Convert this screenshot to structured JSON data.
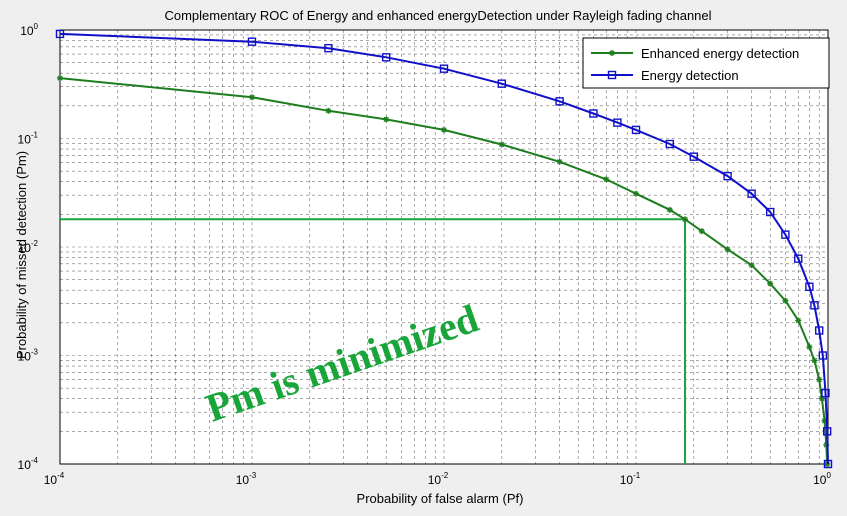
{
  "chart_data": {
    "type": "line",
    "title": "Complementary ROC of Energy  and enhanced energyDetection under Rayleigh fading channel",
    "xlabel": "Probability of false alarm (Pf)",
    "ylabel": "Probability of missed detection (Pm)",
    "xscale": "log",
    "yscale": "log",
    "xlim": [
      0.0001,
      1
    ],
    "ylim": [
      0.0001,
      1
    ],
    "grid": true,
    "legend_position": "top-right",
    "x_ticks": [
      {
        "base": "10",
        "exp": "-4",
        "value": 0.0001
      },
      {
        "base": "10",
        "exp": "-3",
        "value": 0.001
      },
      {
        "base": "10",
        "exp": "-2",
        "value": 0.01
      },
      {
        "base": "10",
        "exp": "-1",
        "value": 0.1
      },
      {
        "base": "10",
        "exp": "0",
        "value": 1
      }
    ],
    "y_ticks": [
      {
        "base": "10",
        "exp": "-4",
        "value": 0.0001
      },
      {
        "base": "10",
        "exp": "-3",
        "value": 0.001
      },
      {
        "base": "10",
        "exp": "-2",
        "value": 0.01
      },
      {
        "base": "10",
        "exp": "-1",
        "value": 0.1
      },
      {
        "base": "10",
        "exp": "0",
        "value": 1
      }
    ],
    "series": [
      {
        "name": "Enhanced energy detection",
        "color": "#1e7d1e",
        "marker": "star",
        "x": [
          0.0001,
          0.001,
          0.0025,
          0.005,
          0.01,
          0.02,
          0.04,
          0.07,
          0.1,
          0.15,
          0.18,
          0.22,
          0.3,
          0.4,
          0.5,
          0.6,
          0.7,
          0.8,
          0.85,
          0.9,
          0.93,
          0.96,
          0.98,
          0.99
        ],
        "y": [
          0.36,
          0.24,
          0.18,
          0.15,
          0.12,
          0.088,
          0.061,
          0.042,
          0.031,
          0.022,
          0.018,
          0.014,
          0.0095,
          0.0068,
          0.0046,
          0.0032,
          0.0021,
          0.0012,
          0.0009,
          0.0006,
          0.0004,
          0.00025,
          0.00015,
          0.0001
        ]
      },
      {
        "name": "Energy detection",
        "color": "#1010c8",
        "marker": "square",
        "x": [
          0.0001,
          0.001,
          0.0025,
          0.005,
          0.01,
          0.02,
          0.04,
          0.06,
          0.08,
          0.1,
          0.15,
          0.2,
          0.3,
          0.4,
          0.5,
          0.6,
          0.7,
          0.8,
          0.85,
          0.9,
          0.94,
          0.97,
          0.99,
          1.0
        ],
        "y": [
          0.92,
          0.78,
          0.68,
          0.56,
          0.44,
          0.32,
          0.22,
          0.17,
          0.14,
          0.12,
          0.089,
          0.068,
          0.045,
          0.031,
          0.021,
          0.013,
          0.0078,
          0.0043,
          0.0029,
          0.0017,
          0.001,
          0.00045,
          0.0002,
          0.0001
        ]
      }
    ],
    "annotations": [
      {
        "text": "Pm is minimized",
        "color": "#1aa53a"
      }
    ],
    "reference_lines": [
      {
        "type": "horizontal",
        "y": 0.018,
        "x_from": 0.0001,
        "x_to": 0.18,
        "color": "#1aa53a"
      },
      {
        "type": "vertical",
        "x": 0.18,
        "y_from": 0.0001,
        "y_to": 0.018,
        "color": "#1aa53a"
      }
    ]
  }
}
